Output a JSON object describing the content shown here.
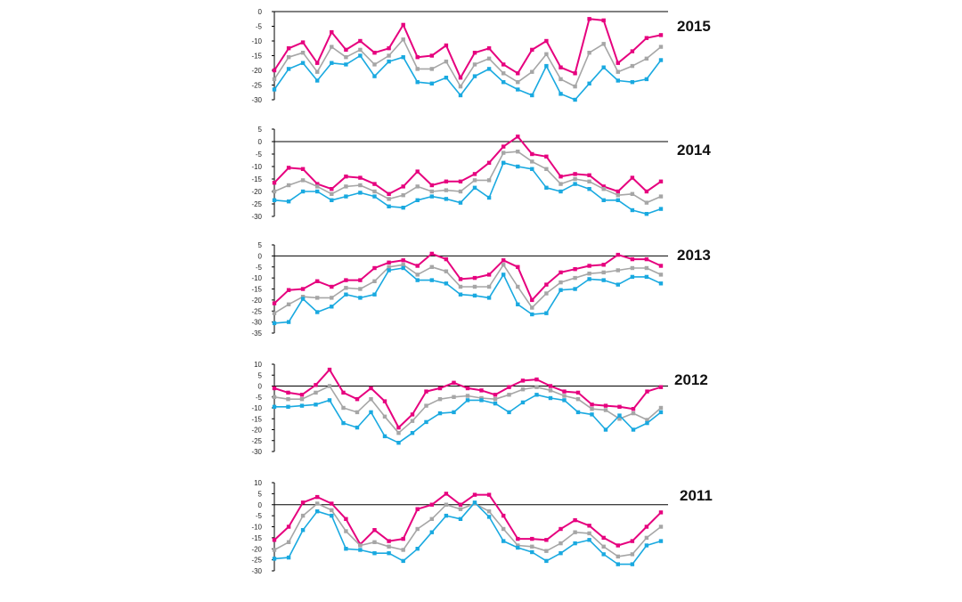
{
  "chart_data": [
    {
      "type": "line",
      "title": "2015",
      "ylim": [
        -30,
        0
      ],
      "yticks": [
        0,
        -5,
        -10,
        -15,
        -20,
        -25,
        -30
      ],
      "colors": [
        "#e6007e",
        "#a6a6a6",
        "#19a9e0"
      ],
      "series": [
        {
          "values": [
            -20,
            -12.5,
            -10.5,
            -17.5,
            -7,
            -13,
            -10,
            -14,
            -12.5,
            -4.5,
            -15.5,
            -15,
            -11.5,
            -22.5,
            -14,
            -12.5,
            -18,
            -21,
            -13,
            -10,
            -19,
            -21,
            -2.5,
            -3,
            -17.5,
            -13.5,
            -9,
            -8
          ]
        },
        {
          "values": [
            -23,
            -15.5,
            -14,
            -20.5,
            -12,
            -15.5,
            -13,
            -18,
            -15,
            -9.5,
            -19.5,
            -19.5,
            -17,
            -25.5,
            -18,
            -16,
            -21,
            -24,
            -20.5,
            -14.5,
            -23,
            -25.5,
            -14,
            -11,
            -20.5,
            -18.5,
            -16,
            -12
          ]
        },
        {
          "values": [
            -26.5,
            -19.5,
            -17.5,
            -23.5,
            -17.5,
            -18,
            -15,
            -22,
            -17,
            -15.5,
            -24,
            -24.5,
            -22.5,
            -28.5,
            -22,
            -19.5,
            -24,
            -26.5,
            -28.5,
            -18.5,
            -28,
            -30,
            -24.5,
            -19,
            -23.5,
            -24,
            -23,
            -16.5
          ]
        }
      ]
    },
    {
      "type": "line",
      "title": "2014",
      "ylim": [
        -30,
        5
      ],
      "yticks": [
        5,
        0,
        -5,
        -10,
        -15,
        -20,
        -25,
        -30
      ],
      "colors": [
        "#e6007e",
        "#a6a6a6",
        "#19a9e0"
      ],
      "series": [
        {
          "values": [
            -16.5,
            -10.5,
            -11,
            -17,
            -19,
            -14,
            -14.5,
            -17,
            -21,
            -18,
            -12,
            -17.5,
            -16,
            -16,
            -13,
            -8.5,
            -2,
            2,
            -5,
            -6,
            -14,
            -13,
            -13.5,
            -18,
            -20,
            -14.5,
            -20,
            -16
          ]
        },
        {
          "values": [
            -20,
            -17.5,
            -15.5,
            -18,
            -21,
            -18,
            -17.5,
            -20,
            -23,
            -21.5,
            -18,
            -20,
            -19.5,
            -20,
            -15.5,
            -15.5,
            -4.5,
            -4,
            -8,
            -11,
            -17,
            -15,
            -16,
            -19,
            -21.5,
            -21,
            -24.5,
            -22
          ]
        },
        {
          "values": [
            -23.5,
            -24,
            -20,
            -20,
            -23.5,
            -22,
            -20.5,
            -22,
            -26,
            -26.5,
            -23.5,
            -22,
            -23,
            -24.5,
            -18.5,
            -22.5,
            -8.5,
            -10,
            -11,
            -18.5,
            -20,
            -17,
            -19,
            -23.5,
            -23.5,
            -27.5,
            -29,
            -27
          ]
        }
      ]
    },
    {
      "type": "line",
      "title": "2013",
      "ylim": [
        -35,
        5
      ],
      "yticks": [
        5,
        0,
        -5,
        -10,
        -15,
        -20,
        -25,
        -30,
        -35
      ],
      "colors": [
        "#e6007e",
        "#a6a6a6",
        "#19a9e0"
      ],
      "series": [
        {
          "values": [
            -21.5,
            -15.5,
            -15,
            -11.5,
            -14,
            -11,
            -11,
            -5.5,
            -3,
            -2,
            -4.5,
            1,
            -1.5,
            -10.5,
            -10,
            -8.5,
            -2,
            -5,
            -20,
            -13,
            -7.5,
            -6,
            -4.5,
            -4,
            0.5,
            -1.5,
            -1.5,
            -4.5
          ]
        },
        {
          "values": [
            -26,
            -22,
            -18.5,
            -19,
            -19,
            -14.5,
            -15,
            -11.5,
            -5,
            -4,
            -8.5,
            -5,
            -7,
            -14,
            -14,
            -14,
            -4,
            -14,
            -23.5,
            -17,
            -12,
            -10,
            -8,
            -7.5,
            -6.5,
            -5.5,
            -5.5,
            -8.5
          ]
        },
        {
          "values": [
            -30.5,
            -30,
            -19.5,
            -25.5,
            -23,
            -17.5,
            -19,
            -17.5,
            -6.5,
            -5.5,
            -11,
            -11,
            -12.5,
            -17.5,
            -18,
            -19,
            -8.5,
            -22,
            -26.5,
            -26,
            -15.5,
            -15,
            -10.5,
            -11,
            -13,
            -9.5,
            -9.5,
            -12.5
          ]
        }
      ]
    },
    {
      "type": "line",
      "title": "2012",
      "ylim": [
        -30,
        10
      ],
      "yticks": [
        10,
        5,
        0,
        -5,
        -10,
        -15,
        -20,
        -25,
        -30
      ],
      "colors": [
        "#e6007e",
        "#a6a6a6",
        "#19a9e0"
      ],
      "series": [
        {
          "values": [
            -1,
            -3,
            -4,
            0.5,
            7.5,
            -3,
            -6,
            -1,
            -7,
            -19,
            -13,
            -2.5,
            -1,
            1.5,
            -1,
            -2,
            -4,
            -0.5,
            2.5,
            3,
            0,
            -2.5,
            -3,
            -8.5,
            -9,
            -9.5,
            -10.5,
            -2.5,
            -0.5
          ]
        },
        {
          "values": [
            -5,
            -6,
            -6,
            -3,
            0,
            -10,
            -12,
            -6,
            -14,
            -21.5,
            -16,
            -9,
            -6,
            -5,
            -4.5,
            -5.5,
            -6,
            -4,
            -1.5,
            -0.5,
            -2,
            -4.5,
            -6,
            -10.5,
            -11,
            -15,
            -12.5,
            -15.5,
            -10
          ]
        },
        {
          "values": [
            -9.5,
            -9.5,
            -9,
            -8.5,
            -6.5,
            -17,
            -19,
            -12,
            -23,
            -26,
            -21.5,
            -16.5,
            -12.5,
            -12,
            -6.5,
            -6.5,
            -8,
            -12,
            -7.5,
            -4,
            -5.5,
            -6.5,
            -12,
            -13,
            -20,
            -13.5,
            -20,
            -17,
            -12
          ]
        }
      ]
    },
    {
      "type": "line",
      "title": "2011",
      "ylim": [
        -30,
        10
      ],
      "yticks": [
        10,
        5,
        0,
        -5,
        -10,
        -15,
        -20,
        -25,
        -30
      ],
      "colors": [
        "#e6007e",
        "#a6a6a6",
        "#19a9e0"
      ],
      "series": [
        {
          "values": [
            -16,
            -10,
            1,
            3.5,
            0.5,
            -6.5,
            -18,
            -11.5,
            -16.5,
            -15.5,
            -2,
            0,
            5,
            0,
            4.5,
            4.5,
            -5,
            -15.5,
            -15.5,
            -16,
            -11,
            -7,
            -9.5,
            -15,
            -18.5,
            -16.5,
            -10,
            -3.5
          ]
        },
        {
          "values": [
            -20.5,
            -17,
            -5,
            0.5,
            -2.5,
            -12,
            -18.5,
            -17,
            -19,
            -20.5,
            -11,
            -6.5,
            0,
            -2,
            0.5,
            -3,
            -11,
            -18.5,
            -19,
            -21,
            -17.5,
            -12.5,
            -13,
            -19,
            -23.5,
            -22.5,
            -15,
            -10
          ]
        },
        {
          "values": [
            -24.5,
            -24,
            -11.5,
            -3,
            -5,
            -20,
            -20.5,
            -22,
            -22,
            -25.5,
            -20,
            -12.5,
            -5,
            -6.5,
            1,
            -5.5,
            -16.5,
            -19.5,
            -21.5,
            -25.5,
            -22,
            -17.5,
            -16,
            -22.5,
            -27,
            -27,
            -18.5,
            -16.5
          ]
        }
      ]
    }
  ]
}
